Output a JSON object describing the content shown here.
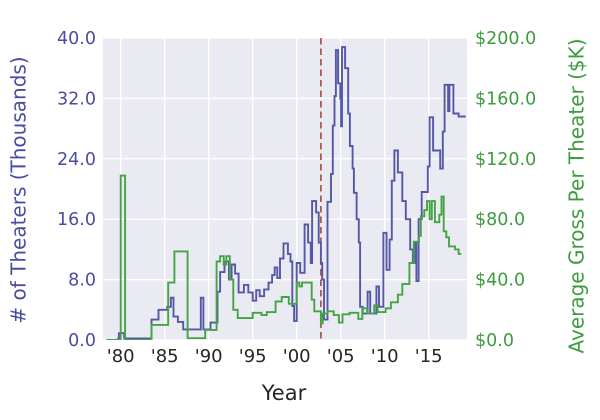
{
  "figure": {
    "xlabel": "Year",
    "ylabel_left": "# of Theaters (Thousands)",
    "ylabel_right": "Average Gross Per Theater ($K)"
  },
  "colors": {
    "plot_background": "#eaeaf2",
    "grid": "#ffffff",
    "theaters_line": "#5558a7",
    "theaters_ticks": "#4b4d9e",
    "gross_line": "#46a346",
    "gross_ticks": "#3d9c3d",
    "x_ticks": "#262626",
    "reference_line": "#b05a54"
  },
  "chart_data": {
    "type": "line",
    "title": "",
    "grid": true,
    "legend": "none",
    "step_interpolation": true,
    "x_axis": {
      "label": "Year",
      "range": [
        1977.99,
        2019.35
      ],
      "ticks": [
        1980,
        1985,
        1990,
        1995,
        2000,
        2005,
        2010,
        2015
      ],
      "tick_labels": [
        "'80",
        "'85",
        "'90",
        "'95",
        "'00",
        "'05",
        "'10",
        "'15"
      ]
    },
    "y_axis_left": {
      "label": "# of Theaters (Thousands)",
      "range": [
        0,
        40
      ],
      "ticks": [
        0,
        8,
        16,
        24,
        32,
        40
      ],
      "tick_labels": [
        "0.0",
        "8.0",
        "16.0",
        "24.0",
        "32.0",
        "40.0"
      ]
    },
    "y_axis_right": {
      "label": "Average Gross Per Theater ($K)",
      "range": [
        0,
        200
      ],
      "ticks": [
        0,
        40,
        80,
        120,
        160,
        200
      ],
      "tick_labels": [
        "$0.0",
        "$40.0",
        "$80.0",
        "$120.0",
        "$160.0",
        "$200.0"
      ]
    },
    "annotations": [
      {
        "type": "vline",
        "x": 2002.75,
        "style": "dashed",
        "color": "#b05a54"
      }
    ],
    "series": [
      {
        "name": "theaters_thousands",
        "axis": "left",
        "color": "#5558a7",
        "points": [
          [
            1979.6,
            0.2
          ],
          [
            1979.8,
            0.9
          ],
          [
            1980.4,
            0.2
          ],
          [
            1983.5,
            2.7
          ],
          [
            1984.3,
            4.0
          ],
          [
            1985.3,
            4.4
          ],
          [
            1985.7,
            5.6
          ],
          [
            1986.0,
            3.1
          ],
          [
            1986.5,
            2.4
          ],
          [
            1987.1,
            1.4
          ],
          [
            1989.1,
            5.6
          ],
          [
            1989.4,
            1.4
          ],
          [
            1990.2,
            2.3
          ],
          [
            1991.0,
            6.4
          ],
          [
            1991.3,
            9.0
          ],
          [
            1991.8,
            10.4
          ],
          [
            1992.3,
            8.0
          ],
          [
            1992.6,
            10.0
          ],
          [
            1993.0,
            8.8
          ],
          [
            1993.4,
            6.3
          ],
          [
            1994.0,
            7.3
          ],
          [
            1994.5,
            6.3
          ],
          [
            1995.0,
            5.2
          ],
          [
            1995.4,
            6.6
          ],
          [
            1995.8,
            5.8
          ],
          [
            1996.3,
            6.7
          ],
          [
            1996.8,
            7.6
          ],
          [
            1997.2,
            8.6
          ],
          [
            1997.5,
            9.6
          ],
          [
            1997.8,
            8.2
          ],
          [
            1998.1,
            10.8
          ],
          [
            1998.5,
            12.8
          ],
          [
            1999.0,
            11.4
          ],
          [
            1999.3,
            10.4
          ],
          [
            1999.5,
            4.5
          ],
          [
            1999.7,
            2.5
          ],
          [
            2000.0,
            10.2
          ],
          [
            2000.4,
            8.9
          ],
          [
            2000.9,
            15.3
          ],
          [
            2001.3,
            12.9
          ],
          [
            2001.6,
            10.2
          ],
          [
            2001.75,
            18.4
          ],
          [
            2002.2,
            16.9
          ],
          [
            2002.5,
            12.9
          ],
          [
            2002.75,
            10.2
          ],
          [
            2002.9,
            8.0
          ],
          [
            2003.1,
            2.7
          ],
          [
            2003.5,
            18.3
          ],
          [
            2003.9,
            22.0
          ],
          [
            2004.1,
            28.4
          ],
          [
            2004.3,
            32.3
          ],
          [
            2004.45,
            38.4
          ],
          [
            2004.7,
            34.0
          ],
          [
            2004.95,
            32.0
          ],
          [
            2005.05,
            28.3
          ],
          [
            2005.15,
            38.8
          ],
          [
            2005.5,
            36.0
          ],
          [
            2005.85,
            30.0
          ],
          [
            2006.05,
            25.7
          ],
          [
            2006.35,
            22.7
          ],
          [
            2006.5,
            19.5
          ],
          [
            2006.8,
            16.0
          ],
          [
            2007.05,
            12.9
          ],
          [
            2007.2,
            4.4
          ],
          [
            2007.5,
            3.5
          ],
          [
            2008.05,
            6.4
          ],
          [
            2008.35,
            3.5
          ],
          [
            2009.05,
            7.1
          ],
          [
            2009.35,
            4.4
          ],
          [
            2009.85,
            14.2
          ],
          [
            2010.2,
            9.3
          ],
          [
            2010.55,
            13.3
          ],
          [
            2010.8,
            21.1
          ],
          [
            2011.1,
            25.1
          ],
          [
            2011.5,
            22.2
          ],
          [
            2012.0,
            18.4
          ],
          [
            2012.4,
            16.0
          ],
          [
            2012.9,
            12.0
          ],
          [
            2013.2,
            10.2
          ],
          [
            2013.4,
            13.0
          ],
          [
            2013.6,
            7.8
          ],
          [
            2013.85,
            16.0
          ],
          [
            2014.2,
            19.6
          ],
          [
            2014.9,
            23.0
          ],
          [
            2015.1,
            29.5
          ],
          [
            2015.5,
            25.1
          ],
          [
            2016.3,
            22.7
          ],
          [
            2016.6,
            27.6
          ],
          [
            2016.8,
            33.8
          ],
          [
            2017.2,
            30.3
          ],
          [
            2017.35,
            33.8
          ],
          [
            2017.8,
            30.0
          ],
          [
            2018.4,
            29.6
          ],
          [
            2019.2,
            29.6
          ]
        ]
      },
      {
        "name": "avg_gross_per_theater_k",
        "axis": "right",
        "color": "#46a346",
        "points": [
          [
            1978.4,
            0
          ],
          [
            1980.0,
            108.9
          ],
          [
            1980.5,
            0
          ],
          [
            1983.5,
            10
          ],
          [
            1985.4,
            38
          ],
          [
            1986.1,
            58.7
          ],
          [
            1987.6,
            1.2
          ],
          [
            1989.6,
            6.7
          ],
          [
            1990.9,
            52
          ],
          [
            1991.3,
            55.5
          ],
          [
            1991.7,
            50
          ],
          [
            1992.0,
            55.5
          ],
          [
            1992.4,
            40
          ],
          [
            1992.8,
            20
          ],
          [
            1993.3,
            14.5
          ],
          [
            1995.0,
            18
          ],
          [
            1996.0,
            16.5
          ],
          [
            1996.6,
            18.5
          ],
          [
            1997.6,
            25.5
          ],
          [
            1998.3,
            28.5
          ],
          [
            1999.1,
            24
          ],
          [
            2000.0,
            38
          ],
          [
            2000.3,
            35.5
          ],
          [
            2000.6,
            38
          ],
          [
            2001.7,
            26.7
          ],
          [
            2002.0,
            19
          ],
          [
            2002.75,
            11
          ],
          [
            2002.95,
            17.5
          ],
          [
            2003.5,
            19
          ],
          [
            2004.2,
            16.5
          ],
          [
            2004.8,
            11.5
          ],
          [
            2005.2,
            17
          ],
          [
            2006.0,
            18
          ],
          [
            2007.0,
            14
          ],
          [
            2007.45,
            21
          ],
          [
            2008.0,
            17.5
          ],
          [
            2008.8,
            23
          ],
          [
            2009.2,
            18.5
          ],
          [
            2010.1,
            21
          ],
          [
            2010.7,
            25
          ],
          [
            2011.5,
            30
          ],
          [
            2012.0,
            37
          ],
          [
            2012.8,
            51
          ],
          [
            2013.3,
            65
          ],
          [
            2013.9,
            69
          ],
          [
            2014.1,
            82
          ],
          [
            2014.5,
            86
          ],
          [
            2014.8,
            92
          ],
          [
            2015.1,
            80
          ],
          [
            2015.35,
            92
          ],
          [
            2015.7,
            78
          ],
          [
            2016.2,
            83
          ],
          [
            2016.45,
            95
          ],
          [
            2016.7,
            72
          ],
          [
            2017.0,
            68
          ],
          [
            2017.3,
            62
          ],
          [
            2018.0,
            60
          ],
          [
            2018.4,
            57
          ],
          [
            2018.7,
            57
          ]
        ]
      }
    ]
  }
}
